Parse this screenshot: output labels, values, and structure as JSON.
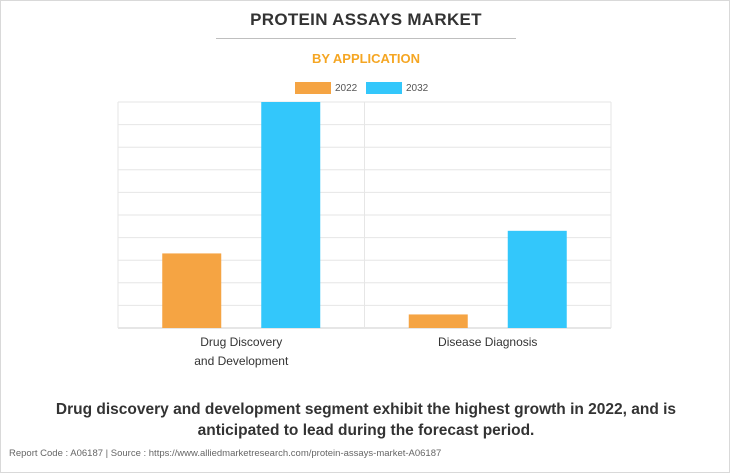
{
  "header": {
    "title": "PROTEIN ASSAYS MARKET",
    "subtitle": "BY APPLICATION"
  },
  "colors": {
    "series_2022": "#f5a443",
    "series_2032": "#33c7fb",
    "subtitle": "#f5a623"
  },
  "chart_data": {
    "type": "bar",
    "categories": [
      [
        "Drug Discovery",
        "and Development"
      ],
      [
        "Disease Diagnosis"
      ]
    ],
    "series": [
      {
        "name": "2022",
        "values": [
          33,
          6
        ]
      },
      {
        "name": "2032",
        "values": [
          100,
          43
        ]
      }
    ],
    "ylim": [
      0,
      100
    ],
    "grid": true,
    "legend": "top-center",
    "y_tick_labels_shown": false
  },
  "caption": {
    "line1": "Drug discovery and development segment exhibit the highest growth in 2022, and is",
    "line2": "anticipated to lead during the forecast period."
  },
  "footer": {
    "text": "Report Code : A06187  |  Source : https://www.alliedmarketresearch.com/protein-assays-market-A06187"
  }
}
